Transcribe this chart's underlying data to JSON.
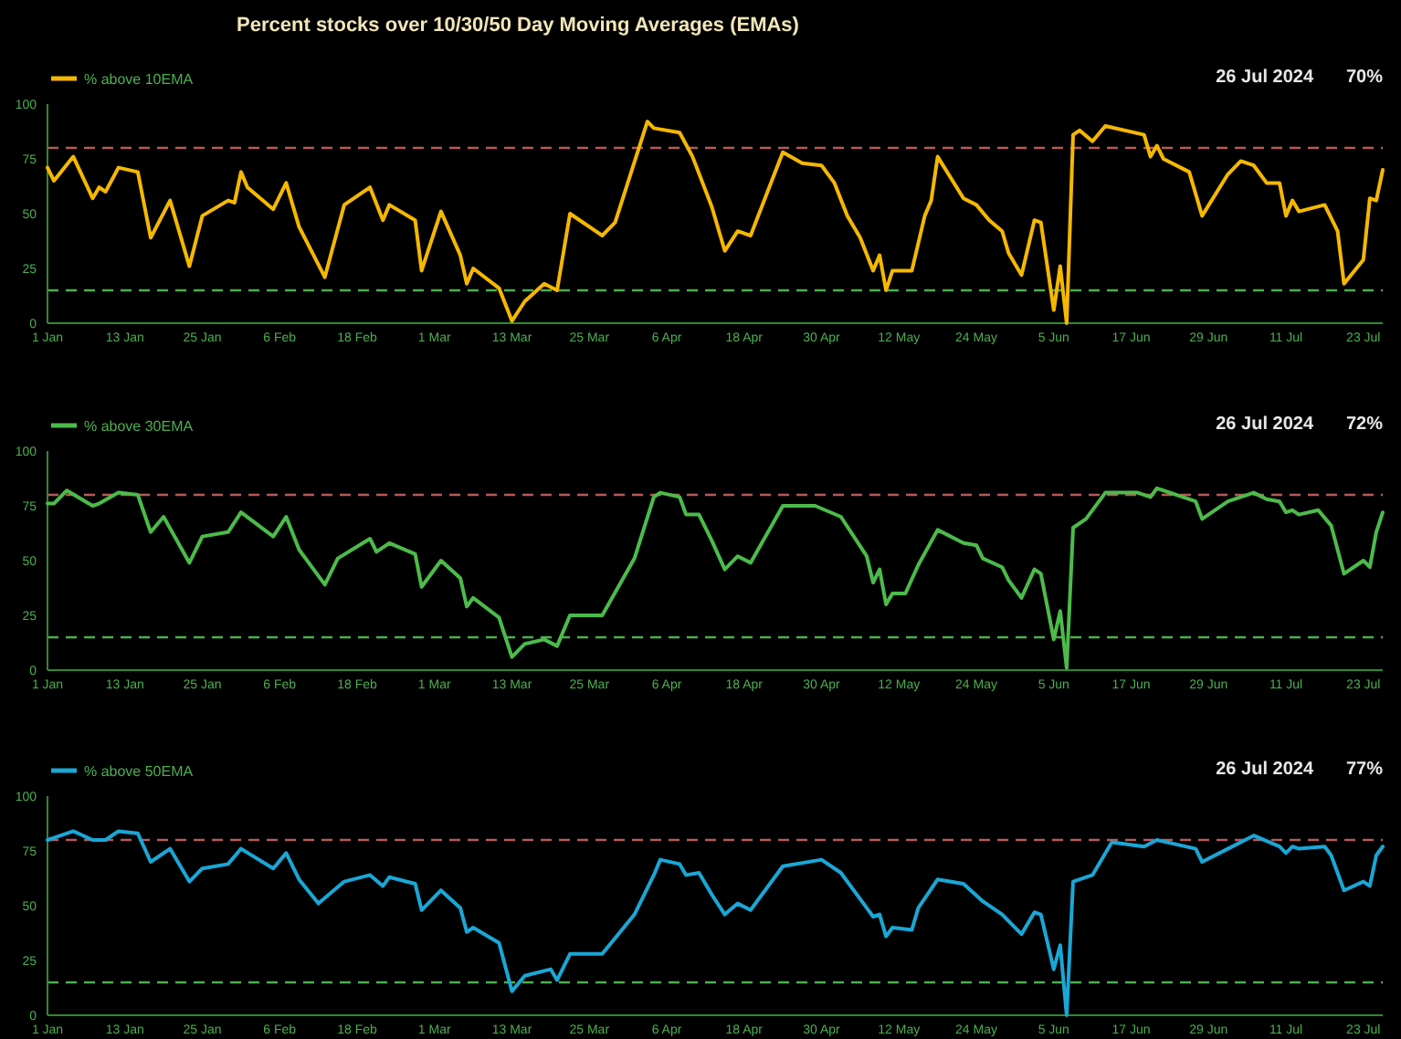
{
  "chart_data": [
    {
      "type": "line",
      "title": "Percent stocks over 10/30/50 Day Moving Averages (EMAs)",
      "legend": "top left",
      "marker": "none",
      "line_style": "solid",
      "grid": false,
      "ylim": [
        0,
        100
      ],
      "yticks": [
        0,
        25,
        50,
        75,
        100
      ],
      "xlim": [
        "2024-01-01",
        "2024-07-26"
      ],
      "xticks": [
        {
          "value": "2024-01-01",
          "label": "1 Jan"
        },
        {
          "value": "2024-01-13",
          "label": "13 Jan"
        },
        {
          "value": "2024-01-25",
          "label": "25 Jan"
        },
        {
          "value": "2024-02-06",
          "label": "6 Feb"
        },
        {
          "value": "2024-02-18",
          "label": "18 Feb"
        },
        {
          "value": "2024-03-01",
          "label": "1 Mar"
        },
        {
          "value": "2024-03-13",
          "label": "13 Mar"
        },
        {
          "value": "2024-03-25",
          "label": "25 Mar"
        },
        {
          "value": "2024-04-06",
          "label": "6 Apr"
        },
        {
          "value": "2024-04-18",
          "label": "18 Apr"
        },
        {
          "value": "2024-04-30",
          "label": "30 Apr"
        },
        {
          "value": "2024-05-12",
          "label": "12 May"
        },
        {
          "value": "2024-05-24",
          "label": "24 May"
        },
        {
          "value": "2024-06-05",
          "label": "5 Jun"
        },
        {
          "value": "2024-06-17",
          "label": "17 Jun"
        },
        {
          "value": "2024-06-29",
          "label": "29 Jun"
        },
        {
          "value": "2024-07-11",
          "label": "11 Jul"
        },
        {
          "value": "2024-07-23",
          "label": "23 Jul"
        }
      ],
      "ref_lines": [
        {
          "axis": "y",
          "value": 80,
          "color": "#b65a5a",
          "line_style": "dashed"
        },
        {
          "axis": "y",
          "value": 15,
          "color": "#4caf50",
          "line_style": "dashed"
        }
      ],
      "annotations": [
        "26 Jul 2024",
        "70%"
      ],
      "series": [
        {
          "name": "% above 10EMA",
          "color": "#f5b800",
          "x": [
            "2024-01-01",
            "2024-01-02",
            "2024-01-05",
            "2024-01-08",
            "2024-01-09",
            "2024-01-10",
            "2024-01-12",
            "2024-01-15",
            "2024-01-17",
            "2024-01-20",
            "2024-01-23",
            "2024-01-25",
            "2024-01-29",
            "2024-01-30",
            "2024-01-31",
            "2024-02-01",
            "2024-02-05",
            "2024-02-07",
            "2024-02-09",
            "2024-02-13",
            "2024-02-16",
            "2024-02-20",
            "2024-02-22",
            "2024-02-23",
            "2024-02-27",
            "2024-02-28",
            "2024-03-02",
            "2024-03-05",
            "2024-03-06",
            "2024-03-07",
            "2024-03-11",
            "2024-03-13",
            "2024-03-15",
            "2024-03-18",
            "2024-03-20",
            "2024-03-22",
            "2024-03-27",
            "2024-03-29",
            "2024-04-03",
            "2024-04-04",
            "2024-04-08",
            "2024-04-10",
            "2024-04-13",
            "2024-04-15",
            "2024-04-17",
            "2024-04-19",
            "2024-04-24",
            "2024-04-27",
            "2024-04-30",
            "2024-05-02",
            "2024-05-04",
            "2024-05-06",
            "2024-05-08",
            "2024-05-09",
            "2024-05-10",
            "2024-05-11",
            "2024-05-14",
            "2024-05-16",
            "2024-05-17",
            "2024-05-18",
            "2024-05-22",
            "2024-05-24",
            "2024-05-26",
            "2024-05-28",
            "2024-05-29",
            "2024-05-31",
            "2024-06-02",
            "2024-06-03",
            "2024-06-05",
            "2024-06-06",
            "2024-06-07",
            "2024-06-08",
            "2024-06-09",
            "2024-06-11",
            "2024-06-13",
            "2024-06-19",
            "2024-06-20",
            "2024-06-21",
            "2024-06-22",
            "2024-06-26",
            "2024-06-28",
            "2024-07-02",
            "2024-07-04",
            "2024-07-06",
            "2024-07-08",
            "2024-07-10",
            "2024-07-11",
            "2024-07-12",
            "2024-07-13",
            "2024-07-17",
            "2024-07-19",
            "2024-07-20",
            "2024-07-23",
            "2024-07-24",
            "2024-07-25",
            "2024-07-26"
          ],
          "values": [
            71,
            65,
            76,
            57,
            62,
            60,
            71,
            69,
            39,
            56,
            26,
            49,
            56,
            55,
            69,
            62,
            52,
            64,
            44,
            21,
            54,
            62,
            47,
            54,
            47,
            24,
            51,
            31,
            18,
            25,
            16,
            1,
            10,
            18,
            15,
            50,
            40,
            46,
            92,
            89,
            87,
            76,
            53,
            33,
            42,
            40,
            78,
            73,
            72,
            64,
            49,
            39,
            24,
            31,
            15,
            24,
            24,
            49,
            56,
            76,
            57,
            54,
            47,
            42,
            32,
            22,
            47,
            46,
            6,
            26,
            0,
            86,
            88,
            83,
            90,
            86,
            76,
            81,
            75,
            69,
            49,
            68,
            74,
            72,
            64,
            64,
            49,
            56,
            51,
            54,
            42,
            18,
            29,
            57,
            56,
            70
          ]
        }
      ]
    },
    {
      "type": "line",
      "legend": "top left",
      "marker": "none",
      "line_style": "solid",
      "grid": false,
      "ylim": [
        0,
        100
      ],
      "yticks": [
        0,
        25,
        50,
        75,
        100
      ],
      "xlim": [
        "2024-01-01",
        "2024-07-26"
      ],
      "xticks": [
        {
          "value": "2024-01-01",
          "label": "1 Jan"
        },
        {
          "value": "2024-01-13",
          "label": "13 Jan"
        },
        {
          "value": "2024-01-25",
          "label": "25 Jan"
        },
        {
          "value": "2024-02-06",
          "label": "6 Feb"
        },
        {
          "value": "2024-02-18",
          "label": "18 Feb"
        },
        {
          "value": "2024-03-01",
          "label": "1 Mar"
        },
        {
          "value": "2024-03-13",
          "label": "13 Mar"
        },
        {
          "value": "2024-03-25",
          "label": "25 Mar"
        },
        {
          "value": "2024-04-06",
          "label": "6 Apr"
        },
        {
          "value": "2024-04-18",
          "label": "18 Apr"
        },
        {
          "value": "2024-04-30",
          "label": "30 Apr"
        },
        {
          "value": "2024-05-12",
          "label": "12 May"
        },
        {
          "value": "2024-05-24",
          "label": "24 May"
        },
        {
          "value": "2024-06-05",
          "label": "5 Jun"
        },
        {
          "value": "2024-06-17",
          "label": "17 Jun"
        },
        {
          "value": "2024-06-29",
          "label": "29 Jun"
        },
        {
          "value": "2024-07-11",
          "label": "11 Jul"
        },
        {
          "value": "2024-07-23",
          "label": "23 Jul"
        }
      ],
      "ref_lines": [
        {
          "axis": "y",
          "value": 80,
          "color": "#b65a5a",
          "line_style": "dashed"
        },
        {
          "axis": "y",
          "value": 15,
          "color": "#4caf50",
          "line_style": "dashed"
        }
      ],
      "annotations": [
        "26 Jul 2024",
        "72%"
      ],
      "series": [
        {
          "name": "% above 30EMA",
          "color": "#4cbb4a",
          "x": [
            "2024-01-01",
            "2024-01-02",
            "2024-01-04",
            "2024-01-08",
            "2024-01-09",
            "2024-01-12",
            "2024-01-15",
            "2024-01-17",
            "2024-01-19",
            "2024-01-23",
            "2024-01-25",
            "2024-01-29",
            "2024-01-31",
            "2024-02-05",
            "2024-02-07",
            "2024-02-09",
            "2024-02-13",
            "2024-02-15",
            "2024-02-20",
            "2024-02-21",
            "2024-02-23",
            "2024-02-27",
            "2024-02-28",
            "2024-03-02",
            "2024-03-05",
            "2024-03-06",
            "2024-03-07",
            "2024-03-11",
            "2024-03-13",
            "2024-03-15",
            "2024-03-18",
            "2024-03-20",
            "2024-03-22",
            "2024-03-27",
            "2024-04-01",
            "2024-04-04",
            "2024-04-05",
            "2024-04-08",
            "2024-04-09",
            "2024-04-11",
            "2024-04-13",
            "2024-04-15",
            "2024-04-17",
            "2024-04-19",
            "2024-04-24",
            "2024-04-29",
            "2024-05-03",
            "2024-05-07",
            "2024-05-08",
            "2024-05-09",
            "2024-05-10",
            "2024-05-11",
            "2024-05-13",
            "2024-05-15",
            "2024-05-18",
            "2024-05-22",
            "2024-05-24",
            "2024-05-25",
            "2024-05-28",
            "2024-05-29",
            "2024-05-31",
            "2024-06-02",
            "2024-06-03",
            "2024-06-05",
            "2024-06-06",
            "2024-06-07",
            "2024-06-08",
            "2024-06-10",
            "2024-06-13",
            "2024-06-18",
            "2024-06-20",
            "2024-06-21",
            "2024-06-25",
            "2024-06-27",
            "2024-06-28",
            "2024-07-02",
            "2024-07-06",
            "2024-07-08",
            "2024-07-10",
            "2024-07-11",
            "2024-07-12",
            "2024-07-13",
            "2024-07-16",
            "2024-07-18",
            "2024-07-20",
            "2024-07-23",
            "2024-07-24",
            "2024-07-25",
            "2024-07-26"
          ],
          "values": [
            76,
            76,
            82,
            75,
            76,
            81,
            80,
            63,
            70,
            49,
            61,
            63,
            72,
            61,
            70,
            55,
            39,
            51,
            60,
            54,
            58,
            53,
            38,
            50,
            42,
            29,
            33,
            24,
            6,
            12,
            14,
            11,
            25,
            25,
            51,
            79,
            81,
            79,
            71,
            71,
            59,
            46,
            52,
            49,
            75,
            75,
            70,
            52,
            40,
            46,
            30,
            35,
            35,
            48,
            64,
            58,
            57,
            51,
            47,
            41,
            33,
            46,
            44,
            14,
            27,
            1,
            65,
            69,
            81,
            81,
            79,
            83,
            79,
            77,
            69,
            77,
            81,
            78,
            77,
            72,
            73,
            71,
            73,
            66,
            44,
            50,
            47,
            63,
            72
          ]
        }
      ]
    },
    {
      "type": "line",
      "legend": "top left",
      "marker": "none",
      "line_style": "solid",
      "grid": false,
      "ylim": [
        0,
        100
      ],
      "yticks": [
        0,
        25,
        50,
        75,
        100
      ],
      "xlim": [
        "2024-01-01",
        "2024-07-26"
      ],
      "xticks": [
        {
          "value": "2024-01-01",
          "label": "1 Jan"
        },
        {
          "value": "2024-01-13",
          "label": "13 Jan"
        },
        {
          "value": "2024-01-25",
          "label": "25 Jan"
        },
        {
          "value": "2024-02-06",
          "label": "6 Feb"
        },
        {
          "value": "2024-02-18",
          "label": "18 Feb"
        },
        {
          "value": "2024-03-01",
          "label": "1 Mar"
        },
        {
          "value": "2024-03-13",
          "label": "13 Mar"
        },
        {
          "value": "2024-03-25",
          "label": "25 Mar"
        },
        {
          "value": "2024-04-06",
          "label": "6 Apr"
        },
        {
          "value": "2024-04-18",
          "label": "18 Apr"
        },
        {
          "value": "2024-04-30",
          "label": "30 Apr"
        },
        {
          "value": "2024-05-12",
          "label": "12 May"
        },
        {
          "value": "2024-05-24",
          "label": "24 May"
        },
        {
          "value": "2024-06-05",
          "label": "5 Jun"
        },
        {
          "value": "2024-06-17",
          "label": "17 Jun"
        },
        {
          "value": "2024-06-29",
          "label": "29 Jun"
        },
        {
          "value": "2024-07-11",
          "label": "11 Jul"
        },
        {
          "value": "2024-07-23",
          "label": "23 Jul"
        }
      ],
      "ref_lines": [
        {
          "axis": "y",
          "value": 80,
          "color": "#b65a5a",
          "line_style": "dashed"
        },
        {
          "axis": "y",
          "value": 15,
          "color": "#4caf50",
          "line_style": "dashed"
        }
      ],
      "annotations": [
        "26 Jul 2024",
        "77%"
      ],
      "series": [
        {
          "name": "% above 50EMA",
          "color": "#1aa7d6",
          "x": [
            "2024-01-01",
            "2024-01-02",
            "2024-01-05",
            "2024-01-08",
            "2024-01-10",
            "2024-01-12",
            "2024-01-15",
            "2024-01-17",
            "2024-01-20",
            "2024-01-23",
            "2024-01-25",
            "2024-01-29",
            "2024-01-31",
            "2024-02-05",
            "2024-02-07",
            "2024-02-09",
            "2024-02-12",
            "2024-02-16",
            "2024-02-20",
            "2024-02-22",
            "2024-02-23",
            "2024-02-27",
            "2024-02-28",
            "2024-03-02",
            "2024-03-05",
            "2024-03-06",
            "2024-03-07",
            "2024-03-11",
            "2024-03-13",
            "2024-03-15",
            "2024-03-19",
            "2024-03-20",
            "2024-03-22",
            "2024-03-27",
            "2024-04-01",
            "2024-04-04",
            "2024-04-05",
            "2024-04-08",
            "2024-04-09",
            "2024-04-11",
            "2024-04-13",
            "2024-04-15",
            "2024-04-17",
            "2024-04-19",
            "2024-04-24",
            "2024-04-30",
            "2024-05-03",
            "2024-05-07",
            "2024-05-08",
            "2024-05-09",
            "2024-05-10",
            "2024-05-11",
            "2024-05-14",
            "2024-05-15",
            "2024-05-18",
            "2024-05-22",
            "2024-05-25",
            "2024-05-28",
            "2024-05-29",
            "2024-05-31",
            "2024-06-02",
            "2024-06-03",
            "2024-06-05",
            "2024-06-06",
            "2024-06-07",
            "2024-06-08",
            "2024-06-11",
            "2024-06-14",
            "2024-06-19",
            "2024-06-21",
            "2024-06-27",
            "2024-06-28",
            "2024-07-02",
            "2024-07-06",
            "2024-07-10",
            "2024-07-11",
            "2024-07-12",
            "2024-07-13",
            "2024-07-17",
            "2024-07-18",
            "2024-07-20",
            "2024-07-23",
            "2024-07-24",
            "2024-07-25",
            "2024-07-26"
          ],
          "values": [
            80,
            81,
            84,
            80,
            80,
            84,
            83,
            70,
            76,
            61,
            67,
            69,
            76,
            67,
            74,
            62,
            51,
            61,
            64,
            59,
            63,
            60,
            48,
            57,
            49,
            38,
            40,
            33,
            11,
            18,
            21,
            16,
            28,
            28,
            46,
            64,
            71,
            69,
            64,
            65,
            55,
            46,
            51,
            48,
            68,
            71,
            65,
            49,
            45,
            46,
            36,
            40,
            39,
            49,
            62,
            60,
            52,
            46,
            43,
            37,
            47,
            46,
            21,
            32,
            0,
            61,
            64,
            79,
            77,
            80,
            76,
            70,
            76,
            82,
            77,
            74,
            77,
            76,
            77,
            73,
            57,
            61,
            59,
            73,
            77
          ]
        }
      ]
    }
  ]
}
